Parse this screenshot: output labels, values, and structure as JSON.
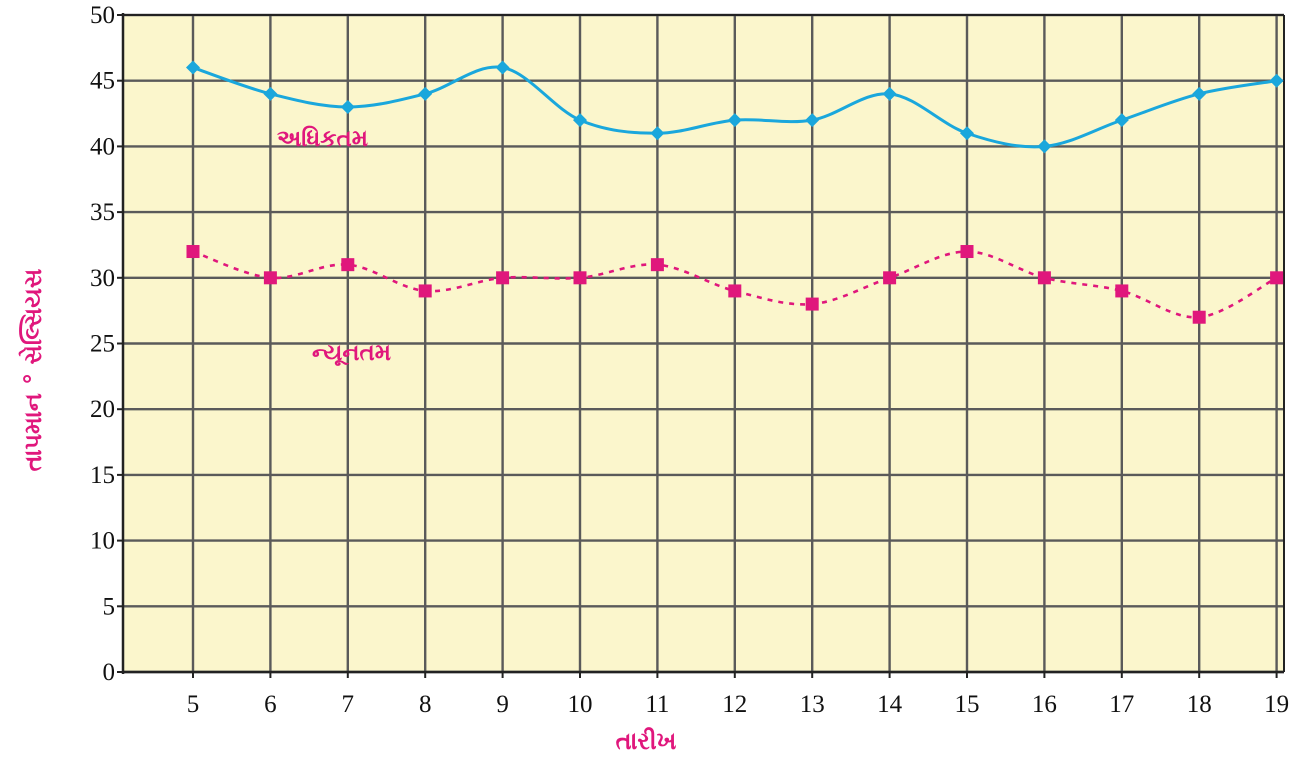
{
  "chart_data": {
    "type": "line",
    "title": "",
    "xlabel": "તારીખ",
    "ylabel": "તાપમાન ° સેલ્સિયસ",
    "x": [
      5,
      6,
      7,
      8,
      9,
      10,
      11,
      12,
      13,
      14,
      15,
      16,
      17,
      18,
      19
    ],
    "x_tick_labels": [
      "5",
      "6",
      "7",
      "8",
      "9",
      "10",
      "11",
      "12",
      "13",
      "14",
      "15",
      "16",
      "17",
      "18",
      "19"
    ],
    "y_ticks": [
      0,
      5,
      10,
      15,
      20,
      25,
      30,
      35,
      40,
      45,
      50
    ],
    "ylim": [
      0,
      50
    ],
    "grid": true,
    "legend": "none",
    "series": [
      {
        "name": "અધિકતમ",
        "values": [
          46,
          44,
          43,
          44,
          46,
          42,
          41,
          42,
          42,
          44,
          41,
          40,
          42,
          44,
          45
        ],
        "color": "#1aa7dc",
        "marker": "diamond",
        "line_style": "solid"
      },
      {
        "name": "ન્યૂનતમ",
        "values": [
          32,
          30,
          31,
          29,
          30,
          30,
          31,
          29,
          28,
          30,
          32,
          30,
          29,
          27,
          30
        ],
        "color": "#e0177c",
        "marker": "square",
        "line_style": "dotted"
      }
    ],
    "colors": {
      "plot_background": "#fbf6cc",
      "grid": "#5a5a5a",
      "axis": "#222222",
      "label": "#e0177c"
    }
  }
}
